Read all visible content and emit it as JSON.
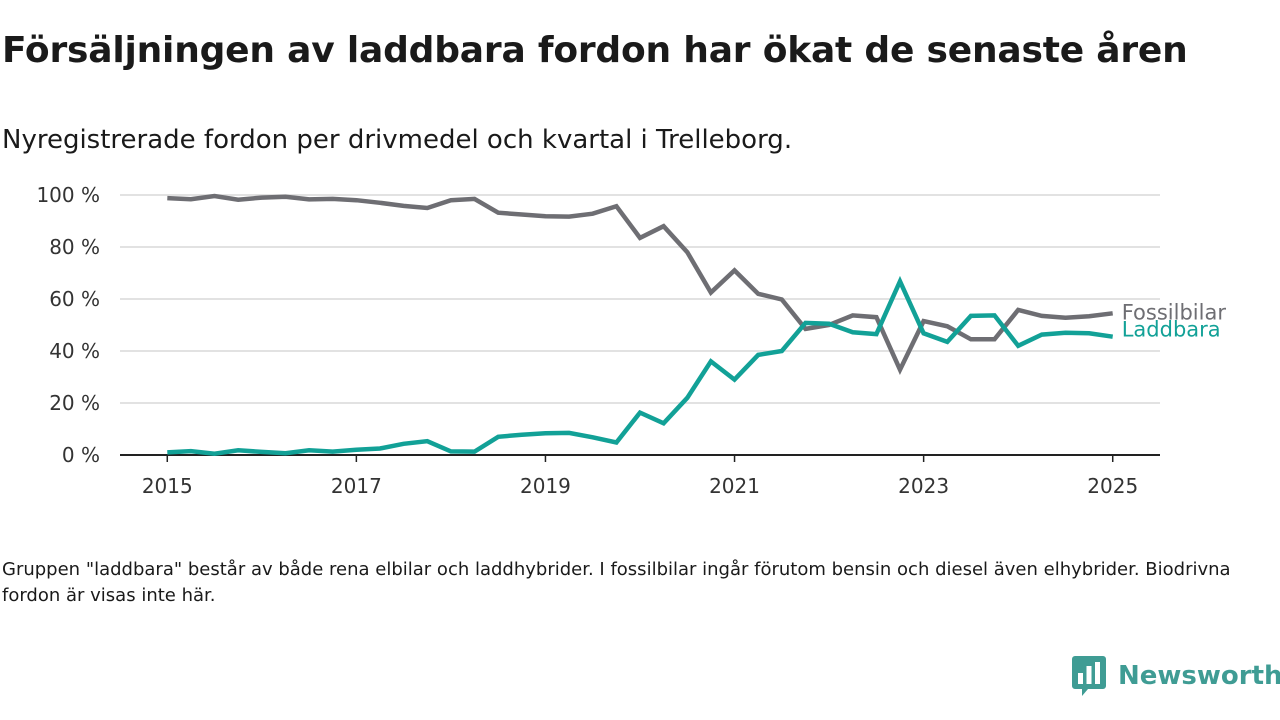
{
  "header": {
    "title": "Försäljningen av laddbara fordon har ökat de senaste åren",
    "subtitle": "Nyregistrerade fordon per drivmedel och kvartal i Trelleborg."
  },
  "footer": {
    "note": "Gruppen \"laddbara\" består av både rena elbilar och laddhybrider. I fossilbilar ingår förutom bensin och diesel även elhybrider. Biodrivna fordon är visas inte här."
  },
  "logo": {
    "text": "Newsworthy",
    "icon": "bar-chart-pin-icon",
    "color": "#3f9c94"
  },
  "chart_data": {
    "type": "line",
    "title": "Försäljningen av laddbara fordon har ökat de senaste åren",
    "subtitle": "Nyregistrerade fordon per drivmedel och kvartal i Trelleborg.",
    "xlabel": "",
    "ylabel": "",
    "x_unit": "year",
    "x_ticks": [
      2015,
      2017,
      2019,
      2021,
      2023,
      2025
    ],
    "xlim": [
      2014.5,
      2025.5
    ],
    "y_ticks": [
      "0 %",
      "20 %",
      "40 %",
      "60 %",
      "80 %",
      "100 %"
    ],
    "ylim": [
      0,
      100
    ],
    "grid": true,
    "legend": "series labels at right end of lines",
    "x": [
      2015,
      2015.25,
      2015.5,
      2015.75,
      2016,
      2016.25,
      2016.5,
      2016.75,
      2017,
      2017.25,
      2017.5,
      2017.75,
      2018,
      2018.25,
      2018.5,
      2018.75,
      2019,
      2019.25,
      2019.5,
      2019.75,
      2020,
      2020.25,
      2020.5,
      2020.75,
      2021,
      2021.25,
      2021.5,
      2021.75,
      2022,
      2022.25,
      2022.5,
      2022.75,
      2023,
      2023.25,
      2023.5,
      2023.75,
      2024,
      2024.25,
      2024.5,
      2024.75,
      2025
    ],
    "series": [
      {
        "name": "Fossilbilar",
        "color": "#6e6e73",
        "values": [
          98.8,
          98.4,
          99.6,
          98.2,
          99.0,
          99.3,
          98.3,
          98.5,
          98.0,
          97.0,
          95.8,
          95.0,
          98.0,
          98.5,
          93.2,
          92.5,
          91.8,
          91.7,
          92.8,
          95.7,
          83.5,
          88.0,
          78.0,
          62.5,
          71.0,
          62.0,
          59.8,
          48.5,
          50.0,
          53.7,
          53.0,
          32.8,
          51.5,
          49.5,
          44.5,
          44.5,
          55.8,
          53.5,
          52.8,
          53.4,
          54.5
        ]
      },
      {
        "name": "Laddbara",
        "color": "#12a197",
        "values": [
          1.0,
          1.5,
          0.5,
          1.8,
          1.2,
          0.7,
          1.8,
          1.3,
          2.0,
          2.5,
          4.3,
          5.3,
          1.4,
          1.3,
          7.0,
          7.8,
          8.4,
          8.5,
          6.8,
          4.8,
          16.3,
          12.2,
          22.0,
          36.0,
          29.0,
          38.5,
          40.0,
          50.8,
          50.5,
          47.2,
          46.5,
          66.8,
          46.8,
          43.5,
          53.5,
          53.7,
          42.0,
          46.3,
          47.0,
          46.8,
          45.5
        ]
      }
    ]
  }
}
